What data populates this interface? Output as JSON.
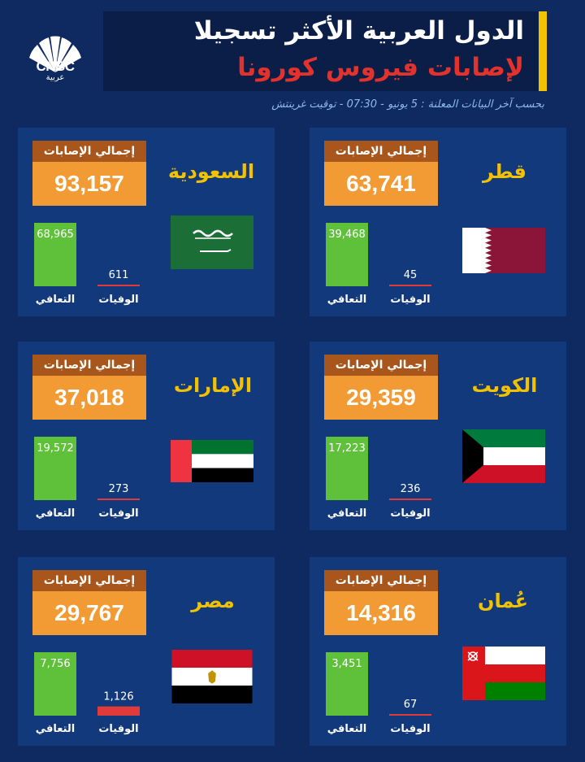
{
  "header": {
    "title_line1": "الدول العربية الأكثر تسجيلا",
    "title_line2": "لإصابات فيروس كورونا",
    "subtitle": "بحسب آخر البيانات المعلنة : 5 يونيو - 07:30 - توقيت غرينتش",
    "logo_text": "CNBC",
    "logo_sub": "عربية"
  },
  "labels": {
    "total": "إجمالي الإصابات",
    "recovered": "التعافي",
    "deaths": "الوفيات"
  },
  "colors": {
    "background": "#0e2a60",
    "card": "#12397c",
    "accent_yellow": "#f2c200",
    "title_red": "#e3322b",
    "total_label": "#a8561b",
    "total_value": "#f29a33",
    "recovered_bar": "#5fc13a",
    "deaths_bar": "#e03a3a"
  },
  "chart_data": {
    "type": "bar",
    "series_names": [
      "التعافي",
      "الوفيات"
    ],
    "countries": [
      {
        "name": "قطر",
        "total": "63,741",
        "recovered": 39468,
        "deaths": 45,
        "recovered_text": "39,468",
        "deaths_text": "45"
      },
      {
        "name": "السعودية",
        "total": "93,157",
        "recovered": 68965,
        "deaths": 611,
        "recovered_text": "68,965",
        "deaths_text": "611"
      },
      {
        "name": "الكويت",
        "total": "29,359",
        "recovered": 17223,
        "deaths": 236,
        "recovered_text": "17,223",
        "deaths_text": "236"
      },
      {
        "name": "الإمارات",
        "total": "37,018",
        "recovered": 19572,
        "deaths": 273,
        "recovered_text": "19,572",
        "deaths_text": "273"
      },
      {
        "name": "عُمان",
        "total": "14,316",
        "recovered": 3451,
        "deaths": 67,
        "recovered_text": "3,451",
        "deaths_text": "67"
      },
      {
        "name": "مصر",
        "total": "29,767",
        "recovered": 7756,
        "deaths": 1126,
        "recovered_text": "7,756",
        "deaths_text": "1,126"
      }
    ]
  }
}
